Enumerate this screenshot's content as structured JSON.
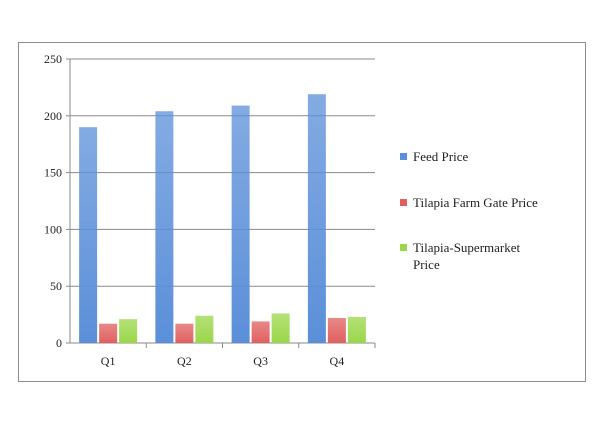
{
  "chart_data": {
    "type": "bar",
    "categories": [
      "Q1",
      "Q2",
      "Q3",
      "Q4"
    ],
    "series": [
      {
        "name": "Feed Price",
        "values": [
          190,
          204,
          209,
          219
        ],
        "color": "#5b8fd9"
      },
      {
        "name": "Tilapia Farm Gate Price",
        "values": [
          17,
          17,
          19,
          22
        ],
        "color": "#e06060"
      },
      {
        "name": "Tilapia-Supermarket Price",
        "values": [
          21,
          24,
          26,
          23
        ],
        "color": "#9bd64a"
      }
    ],
    "ylim": [
      0,
      250
    ],
    "yticks": [
      0,
      50,
      100,
      150,
      200,
      250
    ],
    "grid": true,
    "legend_position": "right"
  },
  "legend": [
    {
      "lines": [
        "Feed Price"
      ]
    },
    {
      "lines": [
        "Tilapia Farm Gate Price"
      ]
    },
    {
      "lines": [
        "Tilapia-Supermarket",
        "Price"
      ]
    }
  ]
}
